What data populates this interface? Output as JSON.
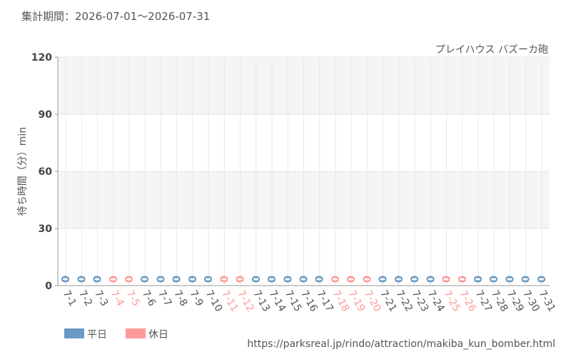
{
  "chart_data": {
    "type": "bar",
    "title": "集計期間：2026-07-01～2026-07-31",
    "subtitle": "プレイハウス バズーカ砲",
    "ylabel": "待ち時間（分）min",
    "footer": "https://parksreal.jp/rindo/attraction/makiba_kun_bomber.html",
    "categories": [
      "7-1",
      "7-2",
      "7-3",
      "7-4",
      "7-5",
      "7-6",
      "7-7",
      "7-8",
      "7-9",
      "7-10",
      "7-11",
      "7-12",
      "7-13",
      "7-14",
      "7-15",
      "7-16",
      "7-17",
      "7-18",
      "7-19",
      "7-20",
      "7-21",
      "7-22",
      "7-23",
      "7-24",
      "7-25",
      "7-26",
      "7-27",
      "7-28",
      "7-29",
      "7-30",
      "7-31"
    ],
    "series": [
      {
        "name": "平日",
        "color": "#6a9ac4",
        "values": [
          0,
          0,
          0,
          null,
          null,
          0,
          0,
          0,
          0,
          0,
          null,
          null,
          0,
          0,
          0,
          0,
          0,
          null,
          null,
          null,
          0,
          0,
          0,
          0,
          null,
          null,
          0,
          0,
          0,
          0,
          0
        ]
      },
      {
        "name": "休日",
        "color": "#ff9999",
        "values": [
          null,
          null,
          null,
          0,
          0,
          null,
          null,
          null,
          null,
          null,
          0,
          0,
          null,
          null,
          null,
          null,
          null,
          0,
          0,
          0,
          null,
          null,
          null,
          null,
          0,
          0,
          null,
          null,
          null,
          null,
          null
        ]
      }
    ],
    "ylim": [
      0,
      120
    ],
    "yticks": [
      0,
      30,
      60,
      90,
      120
    ],
    "grid": true,
    "legend": "bottom-left"
  }
}
